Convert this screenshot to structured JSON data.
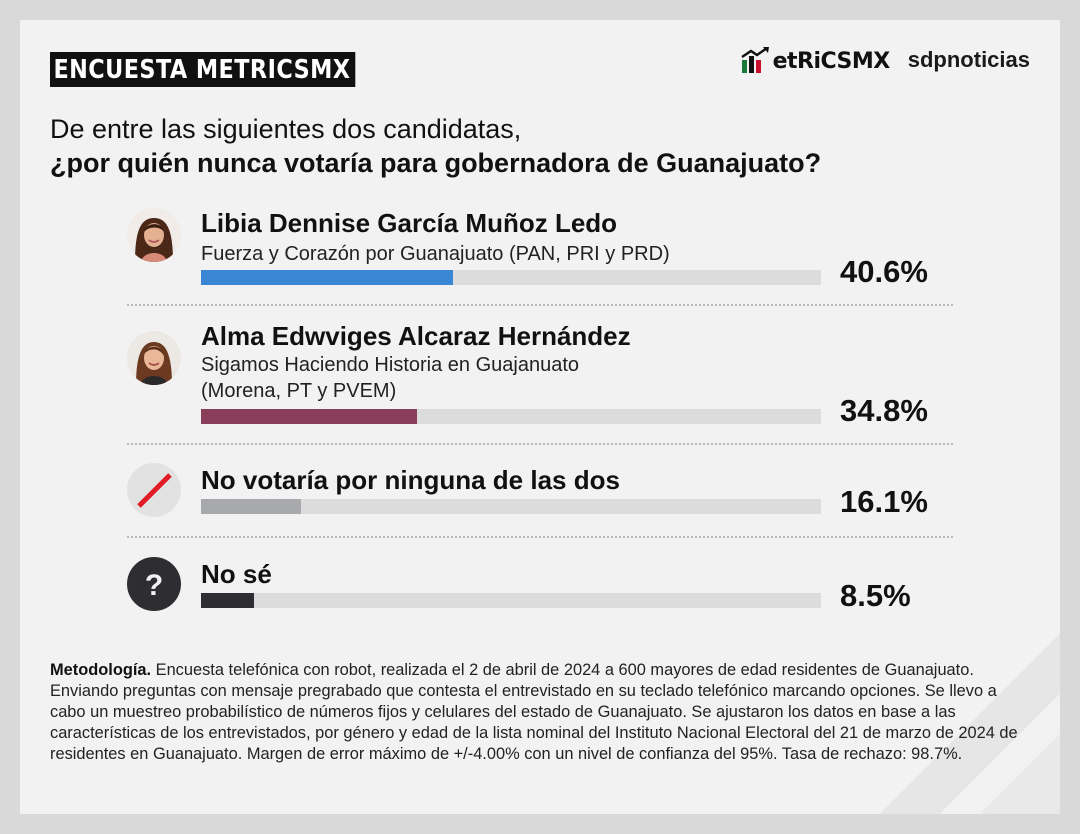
{
  "header": {
    "badge": "ENCUESTA METRICSMX",
    "logo_metrics": "etRiCSMX",
    "logo_sdp": "sdpnoticias"
  },
  "question": {
    "line1": "De entre las siguientes dos candidatas,",
    "line2": "¿por quién nunca votaría para gobernadora de Guanajuato?"
  },
  "options": [
    {
      "name": "Libia Dennise García Muñoz Ledo",
      "sub1": "Fuerza y Corazón por Guanajuato (PAN, PRI y PRD)",
      "sub2": "",
      "value": 40.6,
      "label": "40.6%",
      "color": "#3a86d4",
      "icon": "woman-portrait-icon"
    },
    {
      "name": "Alma Edwviges Alcaraz Hernández",
      "sub1": "Sigamos Haciendo Historia en Guajanuato",
      "sub2": "(Morena, PT y PVEM)",
      "value": 34.8,
      "label": "34.8%",
      "color": "#8a3d58",
      "icon": "woman-portrait-icon"
    },
    {
      "name": "No votaría por ninguna de las dos",
      "sub1": "",
      "sub2": "",
      "value": 16.1,
      "label": "16.1%",
      "color": "#a7a9ac",
      "icon": "prohibited-slash-icon"
    },
    {
      "name": "No sé",
      "sub1": "",
      "sub2": "",
      "value": 8.5,
      "label": "8.5%",
      "color": "#2e2d31",
      "icon": "question-mark-icon"
    }
  ],
  "chart_data": {
    "type": "bar",
    "orientation": "horizontal",
    "categories": [
      "Libia Dennise García Muñoz Ledo",
      "Alma Edwviges Alcaraz Hernández",
      "No votaría por ninguna de las dos",
      "No sé"
    ],
    "values": [
      40.6,
      34.8,
      16.1,
      8.5
    ],
    "title": "¿por quién nunca votaría para gobernadora de Guanajuato?",
    "xlim": [
      0,
      100
    ]
  },
  "methodology": {
    "label": "Metodología.",
    "text": " Encuesta telefónica con robot, realizada el 2 de abril de 2024 a 600 mayores de edad residentes de Guanajuato. Enviando preguntas con mensaje pregrabado que contesta el entrevistado en su teclado telefónico marcando opciones. Se llevo a cabo un muestreo probabilístico de números fijos y celulares del estado de Guanajuato. Se ajustaron los datos en base a las características de los entrevistados, por género y edad de la lista nominal del Instituto Nacional Electoral del 21 de marzo de 2024 de residentes en Guanajuato. Margen de error máximo de +/-4.00% con un nivel de confianza del 95%. Tasa de rechazo: 98.7%."
  }
}
